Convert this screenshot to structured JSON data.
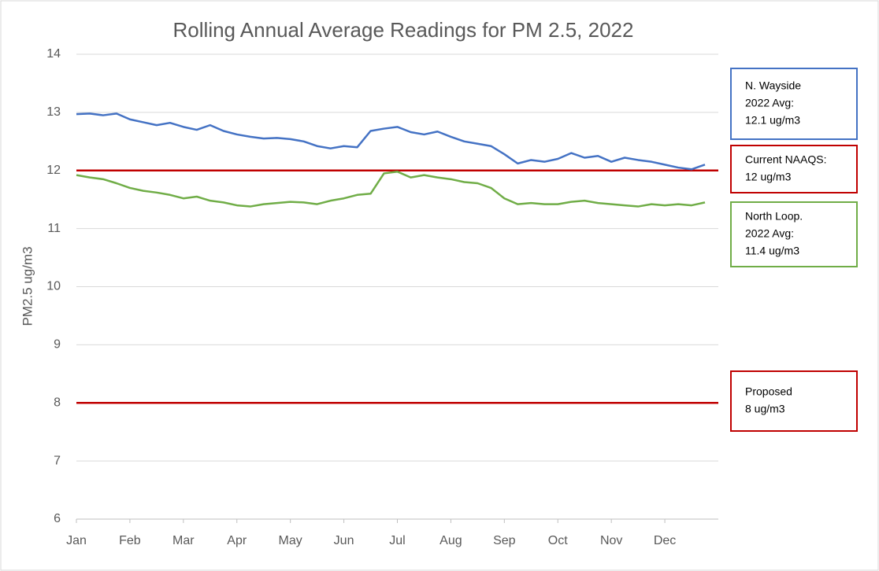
{
  "chart_data": {
    "type": "line",
    "title": "Rolling Annual Average Readings for PM 2.5, 2022",
    "y_label": "PM2.5 ug/m3",
    "categories": [
      "Jan",
      null,
      null,
      null,
      "Feb",
      null,
      null,
      null,
      "Mar",
      null,
      null,
      null,
      "Apr",
      null,
      null,
      null,
      "May",
      null,
      null,
      null,
      "Jun",
      null,
      null,
      null,
      "Jul",
      null,
      null,
      null,
      "Aug",
      null,
      null,
      null,
      "Sep",
      null,
      null,
      null,
      "Oct",
      null,
      null,
      null,
      "Nov",
      null,
      null,
      null,
      "Dec",
      null,
      null,
      null
    ],
    "series": [
      {
        "name": "N. Wayside",
        "color": "#4472c4",
        "values": [
          12.97,
          12.98,
          12.95,
          12.98,
          12.88,
          12.83,
          12.78,
          12.82,
          12.75,
          12.7,
          12.78,
          12.68,
          12.62,
          12.58,
          12.55,
          12.56,
          12.54,
          12.5,
          12.42,
          12.38,
          12.42,
          12.4,
          12.68,
          12.72,
          12.75,
          12.66,
          12.62,
          12.67,
          12.58,
          12.5,
          12.46,
          12.42,
          12.28,
          12.12,
          12.18,
          12.15,
          12.2,
          12.3,
          12.22,
          12.25,
          12.15,
          12.22,
          12.18,
          12.15,
          12.1,
          12.05,
          12.02,
          12.1
        ]
      },
      {
        "name": "North Loop",
        "color": "#70ad47",
        "values": [
          11.92,
          11.88,
          11.85,
          11.78,
          11.7,
          11.65,
          11.62,
          11.58,
          11.52,
          11.55,
          11.48,
          11.45,
          11.4,
          11.38,
          11.42,
          11.44,
          11.46,
          11.45,
          11.42,
          11.48,
          11.52,
          11.58,
          11.6,
          11.95,
          11.98,
          11.88,
          11.92,
          11.88,
          11.85,
          11.8,
          11.78,
          11.7,
          11.52,
          11.42,
          11.44,
          11.42,
          11.42,
          11.46,
          11.48,
          11.44,
          11.42,
          11.4,
          11.38,
          11.42,
          11.4,
          11.42,
          11.4,
          11.45
        ]
      }
    ],
    "reference_lines": [
      {
        "value": 12,
        "color": "#c00000"
      },
      {
        "value": 8,
        "color": "#c00000"
      }
    ],
    "annotations": [
      {
        "lines": [
          "N. Wayside",
          "2022 Avg:",
          "12.1 ug/m3"
        ],
        "color": "#4472c4"
      },
      {
        "lines": [
          "Current NAAQS:",
          "12 ug/m3"
        ],
        "color": "#c00000"
      },
      {
        "lines": [
          "North Loop.",
          "2022 Avg:",
          "11.4 ug/m3"
        ],
        "color": "#70ad47"
      },
      {
        "lines": [
          "Proposed",
          "8 ug/m3"
        ],
        "color": "#c00000"
      }
    ],
    "ylim": [
      6,
      14
    ],
    "yticks": [
      6,
      7,
      8,
      9,
      10,
      11,
      12,
      13,
      14
    ],
    "grid": true
  }
}
